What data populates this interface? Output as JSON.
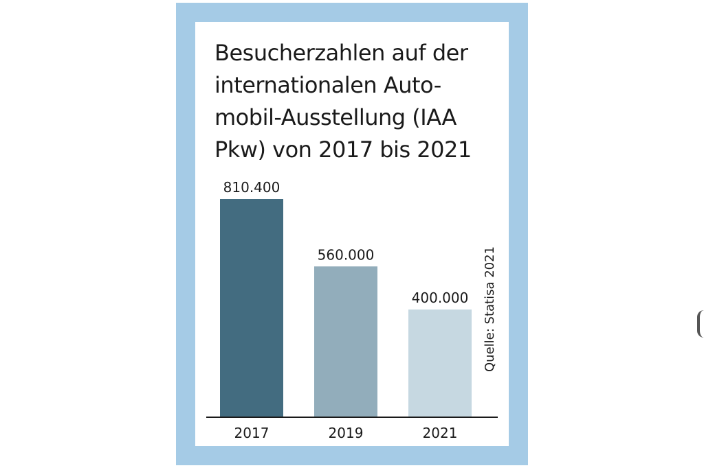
{
  "colors": {
    "frame": "#a5cbe6",
    "bars": [
      "#436c80",
      "#92adbb",
      "#c6d8e1"
    ]
  },
  "chart_data": {
    "type": "bar",
    "title": "Besucherzahlen auf der internationalen Auto-mobil-Ausstellung (IAA Pkw) von 2017 bis 2021",
    "categories": [
      "2017",
      "2019",
      "2021"
    ],
    "values": [
      810400,
      560000,
      400000
    ],
    "value_labels": [
      "810.400",
      "560.000",
      "400.000"
    ],
    "xlabel": "",
    "ylabel": "",
    "ylim": [
      0,
      810400
    ],
    "grid": false,
    "legend": "none",
    "source": "Quelle: Statisa 2021"
  }
}
